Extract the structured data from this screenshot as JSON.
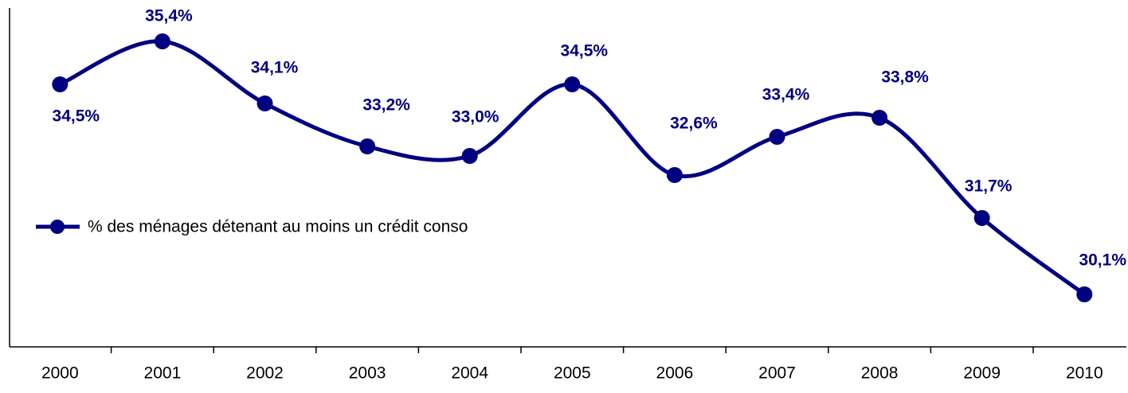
{
  "chart_data": {
    "type": "line",
    "categories": [
      "2000",
      "2001",
      "2002",
      "2003",
      "2004",
      "2005",
      "2006",
      "2007",
      "2008",
      "2009",
      "2010"
    ],
    "series": [
      {
        "name": "% des ménages détenant au moins un crédit conso",
        "color": "#000080",
        "values": [
          34.5,
          35.4,
          34.1,
          33.2,
          33.0,
          34.5,
          32.6,
          33.4,
          33.8,
          31.7,
          30.1
        ],
        "value_labels": [
          "34,5%",
          "35,4%",
          "34,1%",
          "33,2%",
          "33,0%",
          "34,5%",
          "32,6%",
          "33,4%",
          "33,8%",
          "31,7%",
          "30,1%"
        ]
      }
    ],
    "ylim": [
      29,
      36.1
    ],
    "smooth": true
  }
}
